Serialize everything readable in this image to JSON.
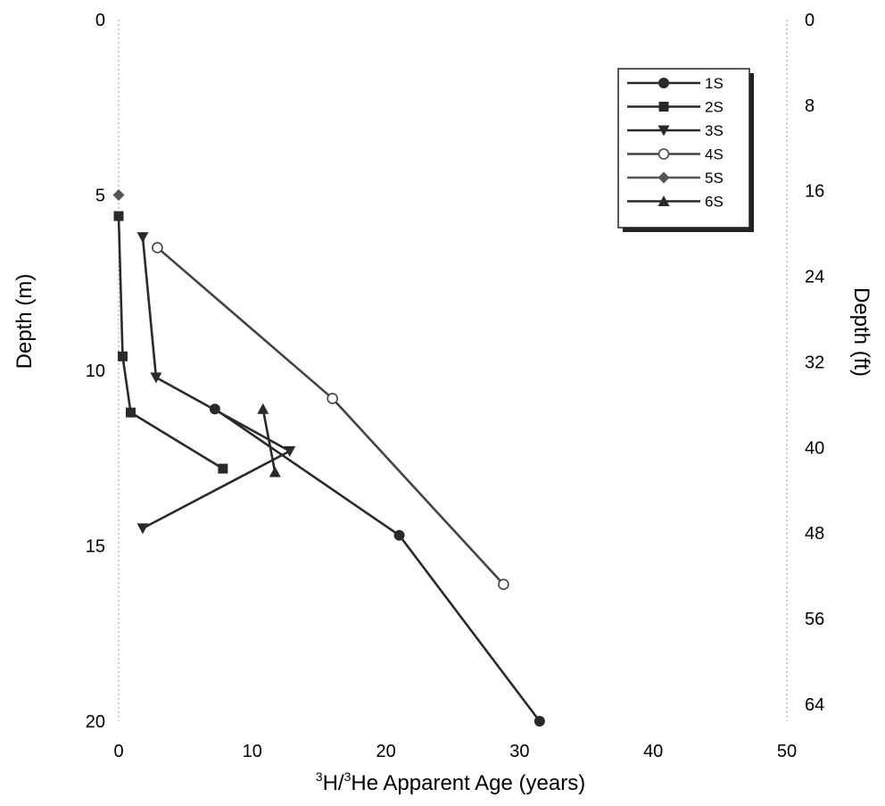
{
  "chart_data": {
    "type": "scatter",
    "title": "",
    "xlabel": {
      "sup1": "3",
      "main1": "H/",
      "sup2": "3",
      "main2": "He Apparent Age (years)"
    },
    "ylabel": "Depth (m)",
    "y2label": "Depth (ft)",
    "xlim": [
      0,
      50
    ],
    "ylim": [
      0,
      20
    ],
    "y2lim": [
      0,
      65.6
    ],
    "y_inverted": true,
    "grid": false,
    "legend_position": "top-right",
    "x_ticks": [
      "0",
      "10",
      "20",
      "30",
      "40",
      "50"
    ],
    "y_ticks": [
      "0",
      "5",
      "10",
      "15",
      "20"
    ],
    "y2_ticks": [
      "0",
      "8",
      "16",
      "24",
      "32",
      "40",
      "48",
      "56",
      "64"
    ],
    "series": [
      {
        "name": "1S",
        "marker": "circle",
        "color": "#2a2a2a",
        "points": [
          [
            7.2,
            11.1
          ],
          [
            21.0,
            14.7
          ],
          [
            31.5,
            20.0
          ]
        ]
      },
      {
        "name": "2S",
        "marker": "square",
        "color": "#2a2a2a",
        "points": [
          [
            0.0,
            5.6
          ],
          [
            0.3,
            9.6
          ],
          [
            0.9,
            11.2
          ],
          [
            7.8,
            12.8
          ]
        ]
      },
      {
        "name": "3S",
        "marker": "triangle-down",
        "color": "#2a2a2a",
        "points": [
          [
            1.8,
            6.2
          ],
          [
            2.8,
            10.2
          ],
          [
            12.8,
            12.3
          ],
          [
            1.8,
            14.5
          ]
        ]
      },
      {
        "name": "4S",
        "marker": "open-circle",
        "color": "#444444",
        "points": [
          [
            2.9,
            6.5
          ],
          [
            16.0,
            10.8
          ],
          [
            28.8,
            16.1
          ]
        ]
      },
      {
        "name": "5S",
        "marker": "diamond",
        "color": "#555555",
        "points": [
          [
            0.0,
            5.0
          ]
        ]
      },
      {
        "name": "6S",
        "marker": "triangle-up",
        "color": "#2a2a2a",
        "points": [
          [
            10.8,
            11.1
          ],
          [
            11.7,
            12.9
          ]
        ]
      }
    ]
  }
}
